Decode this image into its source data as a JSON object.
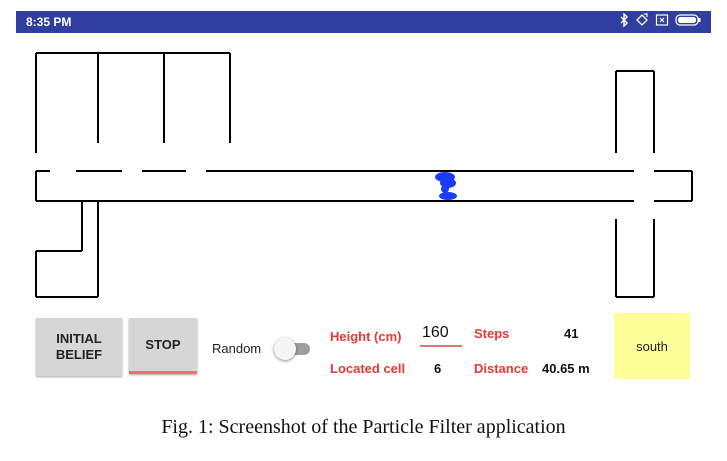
{
  "status_bar": {
    "time": "8:35 PM",
    "color": "#303f9f",
    "icons": [
      "bluetooth-icon",
      "rotate-icon",
      "sim-icon",
      "battery-icon"
    ]
  },
  "buttons": {
    "initial_belief_line1": "INITIAL",
    "initial_belief_line2": "BELIEF",
    "stop": "STOP"
  },
  "random": {
    "label": "Random",
    "on": false
  },
  "height": {
    "label": "Height (cm)",
    "value": "160"
  },
  "located_cell": {
    "label": "Located cell",
    "value": "6"
  },
  "steps": {
    "label": "Steps",
    "value": "41"
  },
  "distance": {
    "label": "Distance",
    "value": "40.65 m"
  },
  "direction": {
    "value": "south",
    "color": "#ffff99"
  },
  "colors": {
    "accent_red": "#e53935",
    "particles": "#1a3cff"
  },
  "caption": "Fig. 1: Screenshot of the Particle Filter application"
}
